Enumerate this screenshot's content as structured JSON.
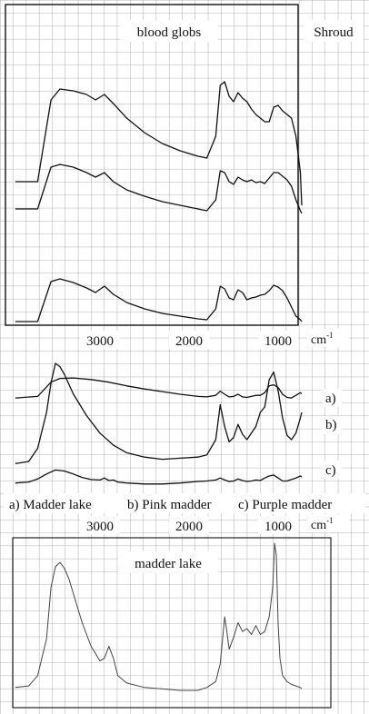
{
  "figure": {
    "panel_top": {
      "label": "blood globs",
      "side_label": "Shroud"
    },
    "panel_middle": {
      "curve_labels": [
        "a)",
        "b)",
        "c)"
      ],
      "legend": [
        "a) Madder lake",
        "b) Pink madder",
        "c) Purple madder"
      ]
    },
    "panel_bottom": {
      "label": "madder lake"
    },
    "axis_unit": "cm-1",
    "axis_unit_base": "cm",
    "axis_unit_sup": "-1"
  },
  "chart_data": [
    {
      "type": "line",
      "title": "blood globs",
      "side_label": "Shroud",
      "xlabel": "cm-1",
      "x_ticks": [
        3000,
        2000,
        1000
      ],
      "xlim": [
        3900,
        650
      ],
      "ylim": [
        0,
        1
      ],
      "series": [
        {
          "x": [
            3950,
            3700,
            3550,
            3450,
            3300,
            3150,
            3050,
            2950,
            2850,
            2700,
            2500,
            2300,
            2100,
            1900,
            1800,
            1700,
            1650,
            1600,
            1550,
            1500,
            1450,
            1400,
            1350,
            1300,
            1250,
            1200,
            1150,
            1100,
            1050,
            1000,
            950,
            900,
            850,
            800,
            750,
            700
          ],
          "y": [
            0.25,
            0.25,
            0.7,
            0.76,
            0.75,
            0.73,
            0.7,
            0.73,
            0.68,
            0.6,
            0.52,
            0.46,
            0.42,
            0.39,
            0.38,
            0.5,
            0.78,
            0.8,
            0.72,
            0.69,
            0.74,
            0.71,
            0.69,
            0.65,
            0.62,
            0.6,
            0.58,
            0.58,
            0.66,
            0.67,
            0.64,
            0.62,
            0.6,
            0.5,
            0.3,
            0.12
          ]
        },
        {
          "x": [
            3950,
            3700,
            3550,
            3450,
            3300,
            3150,
            3050,
            2950,
            2850,
            2700,
            2500,
            2300,
            2100,
            1900,
            1800,
            1700,
            1650,
            1600,
            1550,
            1500,
            1450,
            1400,
            1350,
            1300,
            1250,
            1200,
            1150,
            1100,
            1050,
            1000,
            950,
            900,
            850,
            800,
            750,
            700
          ],
          "y": [
            0.2,
            0.2,
            0.66,
            0.69,
            0.66,
            0.6,
            0.55,
            0.6,
            0.5,
            0.41,
            0.34,
            0.28,
            0.24,
            0.2,
            0.18,
            0.3,
            0.62,
            0.6,
            0.5,
            0.47,
            0.55,
            0.52,
            0.5,
            0.52,
            0.49,
            0.5,
            0.48,
            0.54,
            0.6,
            0.6,
            0.56,
            0.52,
            0.45,
            0.3,
            0.18,
            0.15
          ]
        },
        {
          "x": [
            3950,
            3700,
            3550,
            3450,
            3300,
            3150,
            3050,
            2950,
            2850,
            2700,
            2500,
            2300,
            2100,
            1900,
            1800,
            1700,
            1650,
            1600,
            1550,
            1500,
            1450,
            1400,
            1350,
            1300,
            1250,
            1200,
            1150,
            1100,
            1050,
            1000,
            950,
            900,
            850,
            800,
            750,
            700
          ],
          "y": [
            0.06,
            0.06,
            0.5,
            0.53,
            0.49,
            0.43,
            0.38,
            0.45,
            0.36,
            0.27,
            0.2,
            0.15,
            0.12,
            0.09,
            0.08,
            0.2,
            0.45,
            0.42,
            0.32,
            0.3,
            0.41,
            0.38,
            0.3,
            0.32,
            0.33,
            0.35,
            0.36,
            0.4,
            0.46,
            0.44,
            0.4,
            0.32,
            0.22,
            0.12,
            0.08,
            0.06
          ]
        }
      ]
    },
    {
      "type": "line",
      "xlabel": "cm-1",
      "x_ticks": [
        3000,
        2000,
        1000
      ],
      "xlim": [
        3900,
        650
      ],
      "ylim": [
        0,
        1
      ],
      "legend": [
        "a) Madder lake",
        "b) Pink madder",
        "c) Purple madder"
      ],
      "series": [
        {
          "name": "a)",
          "x": [
            3950,
            3700,
            3550,
            3450,
            3300,
            3100,
            2900,
            2700,
            2500,
            2300,
            2100,
            1900,
            1800,
            1700,
            1650,
            1600,
            1550,
            1500,
            1450,
            1400,
            1350,
            1300,
            1250,
            1200,
            1150,
            1100,
            1050,
            1000,
            950,
            900,
            850,
            800,
            750,
            700
          ],
          "y": [
            0.55,
            0.58,
            0.85,
            0.92,
            0.93,
            0.9,
            0.85,
            0.78,
            0.72,
            0.67,
            0.62,
            0.58,
            0.57,
            0.6,
            0.68,
            0.62,
            0.57,
            0.58,
            0.62,
            0.57,
            0.56,
            0.58,
            0.6,
            0.6,
            0.65,
            0.78,
            0.8,
            0.75,
            0.62,
            0.56,
            0.55,
            0.6,
            0.65,
            0.63
          ]
        },
        {
          "name": "b)",
          "x": [
            3950,
            3800,
            3700,
            3600,
            3550,
            3500,
            3450,
            3400,
            3300,
            3150,
            3000,
            2850,
            2700,
            2500,
            2300,
            2100,
            1900,
            1800,
            1700,
            1650,
            1600,
            1550,
            1500,
            1450,
            1400,
            1350,
            1300,
            1250,
            1200,
            1150,
            1100,
            1050,
            1000,
            950,
            900,
            850,
            800,
            750,
            700
          ],
          "y": [
            0.08,
            0.1,
            0.22,
            0.55,
            0.82,
            1.0,
            0.97,
            0.9,
            0.72,
            0.52,
            0.36,
            0.25,
            0.18,
            0.14,
            0.12,
            0.13,
            0.14,
            0.16,
            0.3,
            0.62,
            0.42,
            0.28,
            0.32,
            0.44,
            0.35,
            0.3,
            0.36,
            0.42,
            0.55,
            0.6,
            0.85,
            0.92,
            0.75,
            0.5,
            0.34,
            0.3,
            0.36,
            0.5,
            0.55
          ]
        },
        {
          "name": "c)",
          "x": [
            3950,
            3800,
            3700,
            3600,
            3500,
            3400,
            3300,
            3200,
            3100,
            3000,
            2950,
            2900,
            2850,
            2800,
            2700,
            2500,
            2300,
            2100,
            1900,
            1800,
            1700,
            1650,
            1600,
            1550,
            1500,
            1450,
            1400,
            1350,
            1300,
            1250,
            1200,
            1150,
            1100,
            1050,
            1000,
            950,
            900,
            850,
            800,
            750,
            700
          ],
          "y": [
            0.06,
            0.08,
            0.14,
            0.24,
            0.32,
            0.3,
            0.24,
            0.17,
            0.13,
            0.12,
            0.16,
            0.11,
            0.12,
            0.08,
            0.06,
            0.04,
            0.04,
            0.06,
            0.09,
            0.1,
            0.12,
            0.16,
            0.12,
            0.09,
            0.1,
            0.14,
            0.11,
            0.09,
            0.1,
            0.12,
            0.11,
            0.16,
            0.2,
            0.22,
            0.16,
            0.1,
            0.1,
            0.13,
            0.16,
            0.2,
            0.18
          ]
        }
      ]
    },
    {
      "type": "line",
      "title": "madder lake",
      "xlabel": "cm-1",
      "x_ticks": [
        3000,
        2000,
        1000
      ],
      "xlim": [
        3900,
        650
      ],
      "ylim": [
        0,
        1
      ],
      "series": [
        {
          "x": [
            3950,
            3800,
            3700,
            3600,
            3550,
            3500,
            3450,
            3400,
            3350,
            3300,
            3200,
            3100,
            3000,
            2950,
            2900,
            2850,
            2800,
            2700,
            2500,
            2300,
            2100,
            1900,
            1800,
            1700,
            1650,
            1600,
            1580,
            1550,
            1500,
            1450,
            1400,
            1350,
            1300,
            1250,
            1200,
            1150,
            1100,
            1060,
            1040,
            1020,
            1000,
            980,
            950,
            900,
            850,
            800,
            750,
            700
          ],
          "y": [
            0.02,
            0.03,
            0.1,
            0.35,
            0.7,
            0.84,
            0.87,
            0.83,
            0.76,
            0.66,
            0.46,
            0.3,
            0.2,
            0.22,
            0.3,
            0.22,
            0.1,
            0.05,
            0.02,
            0.01,
            0.0,
            0.0,
            0.02,
            0.06,
            0.18,
            0.5,
            0.42,
            0.28,
            0.36,
            0.46,
            0.4,
            0.42,
            0.38,
            0.44,
            0.38,
            0.4,
            0.5,
            0.7,
            1.0,
            0.92,
            0.45,
            0.22,
            0.1,
            0.06,
            0.04,
            0.03,
            0.02,
            0.01
          ]
        }
      ]
    }
  ]
}
